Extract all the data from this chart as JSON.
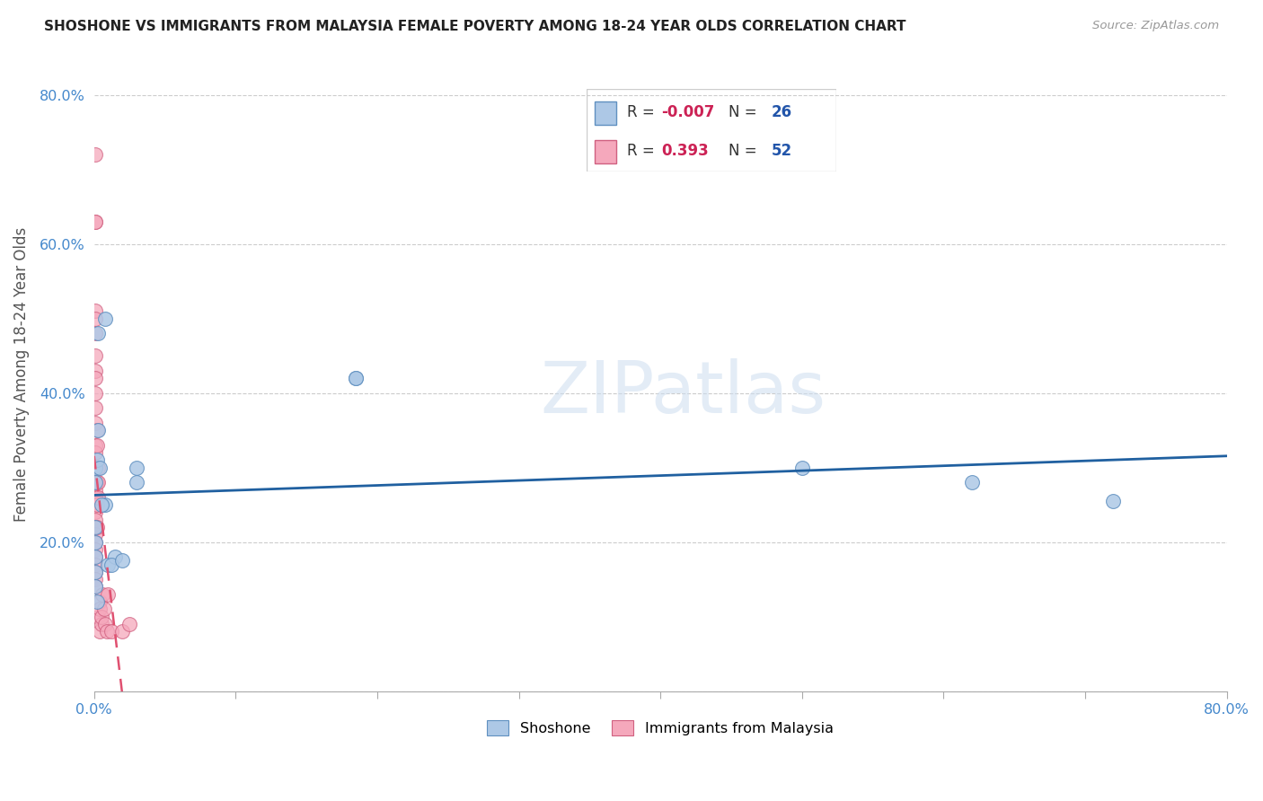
{
  "title": "SHOSHONE VS IMMIGRANTS FROM MALAYSIA FEMALE POVERTY AMONG 18-24 YEAR OLDS CORRELATION CHART",
  "source": "Source: ZipAtlas.com",
  "ylabel": "Female Poverty Among 18-24 Year Olds",
  "xlim": [
    0.0,
    0.8
  ],
  "ylim": [
    0.0,
    0.85
  ],
  "yticks": [
    0.0,
    0.2,
    0.4,
    0.6,
    0.8
  ],
  "ytick_labels": [
    "",
    "20.0%",
    "40.0%",
    "60.0%",
    "80.0%"
  ],
  "xticks": [
    0.0,
    0.1,
    0.2,
    0.3,
    0.4,
    0.5,
    0.6,
    0.7,
    0.8
  ],
  "xtick_labels": [
    "0.0%",
    "",
    "",
    "",
    "",
    "",
    "",
    "",
    "80.0%"
  ],
  "shoshone_color": "#adc8e6",
  "shoshone_edge_color": "#6090c0",
  "malaysia_color": "#f5a8bc",
  "malaysia_edge_color": "#d06080",
  "shoshone_line_color": "#2060a0",
  "malaysia_line_color": "#e05070",
  "R_shoshone": -0.007,
  "N_shoshone": 26,
  "R_malaysia": 0.393,
  "N_malaysia": 52,
  "watermark": "ZIPatlas",
  "shoshone_label": "Shoshone",
  "malaysia_label": "Immigrants from Malaysia",
  "shoshone_x": [
    0.001,
    0.001,
    0.001,
    0.001,
    0.001,
    0.001,
    0.002,
    0.003,
    0.004,
    0.008,
    0.01,
    0.015,
    0.03,
    0.03,
    0.185,
    0.185,
    0.5,
    0.62,
    0.72,
    0.001,
    0.002,
    0.005,
    0.008,
    0.012,
    0.02,
    0.003
  ],
  "shoshone_y": [
    0.3,
    0.28,
    0.22,
    0.2,
    0.18,
    0.16,
    0.31,
    0.35,
    0.3,
    0.25,
    0.17,
    0.18,
    0.3,
    0.28,
    0.42,
    0.42,
    0.3,
    0.28,
    0.255,
    0.14,
    0.12,
    0.25,
    0.5,
    0.17,
    0.175,
    0.48
  ],
  "malaysia_x": [
    0.001,
    0.001,
    0.001,
    0.001,
    0.001,
    0.001,
    0.001,
    0.001,
    0.001,
    0.001,
    0.001,
    0.001,
    0.001,
    0.001,
    0.001,
    0.001,
    0.001,
    0.001,
    0.001,
    0.001,
    0.001,
    0.001,
    0.001,
    0.001,
    0.001,
    0.001,
    0.001,
    0.001,
    0.001,
    0.001,
    0.002,
    0.002,
    0.002,
    0.002,
    0.002,
    0.003,
    0.003,
    0.003,
    0.003,
    0.004,
    0.004,
    0.004,
    0.005,
    0.005,
    0.006,
    0.007,
    0.008,
    0.009,
    0.01,
    0.012,
    0.02,
    0.025
  ],
  "malaysia_y": [
    0.72,
    0.63,
    0.63,
    0.51,
    0.5,
    0.48,
    0.45,
    0.43,
    0.42,
    0.4,
    0.38,
    0.36,
    0.33,
    0.32,
    0.3,
    0.28,
    0.27,
    0.26,
    0.25,
    0.24,
    0.23,
    0.22,
    0.21,
    0.2,
    0.19,
    0.18,
    0.17,
    0.16,
    0.15,
    0.14,
    0.28,
    0.25,
    0.22,
    0.33,
    0.35,
    0.3,
    0.28,
    0.26,
    0.1,
    0.12,
    0.08,
    0.11,
    0.09,
    0.1,
    0.13,
    0.11,
    0.09,
    0.08,
    0.13,
    0.08,
    0.08,
    0.09
  ]
}
